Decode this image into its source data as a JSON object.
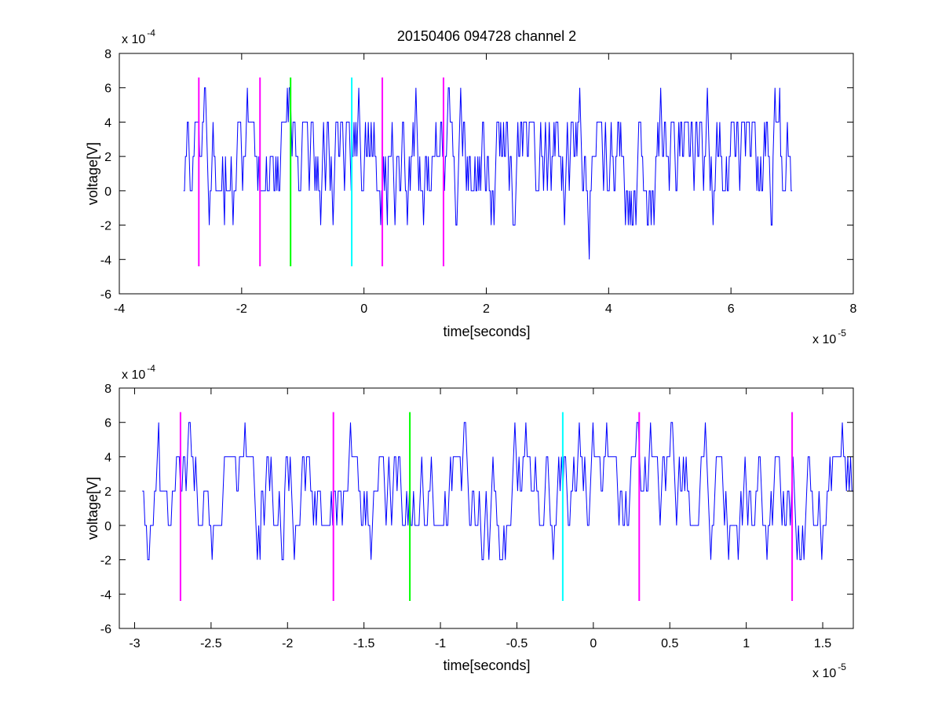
{
  "title": "20150406 094728 channel 2",
  "colors": {
    "signal": "#0000ff",
    "magenta": "#ff00ff",
    "green": "#00ff00",
    "cyan": "#00ffff",
    "axes": "#000000"
  },
  "chart_data": [
    {
      "type": "line",
      "title": "20150406 094728 channel 2",
      "xlabel": "time[seconds]",
      "ylabel": "voltage[V]",
      "x_exponent": {
        "base": "x 10",
        "power": "-5"
      },
      "y_exponent": {
        "base": "x 10",
        "power": "-4"
      },
      "xlim": [
        -4,
        8
      ],
      "ylim": [
        -6,
        8
      ],
      "xticks": [
        -4,
        -2,
        0,
        2,
        4,
        6,
        8
      ],
      "xtick_labels": [
        "-4",
        "-2",
        "0",
        "2",
        "4",
        "6",
        "8"
      ],
      "yticks": [
        -6,
        -4,
        -2,
        0,
        2,
        4,
        6,
        8
      ],
      "ytick_labels": [
        "-6",
        "-4",
        "-2",
        "0",
        "2",
        "4",
        "6",
        "8"
      ],
      "grid": false,
      "series_x_range": [
        -2.95,
        7.0
      ],
      "quantization_step": 2,
      "signal_levels": [
        -4,
        -2,
        0,
        2,
        4,
        6
      ],
      "markers": [
        {
          "x": -2.7,
          "color": "magenta",
          "y_range": [
            -4.4,
            6.6
          ]
        },
        {
          "x": -1.7,
          "color": "magenta",
          "y_range": [
            -4.4,
            6.6
          ]
        },
        {
          "x": -1.2,
          "color": "green",
          "y_range": [
            -4.4,
            6.6
          ]
        },
        {
          "x": -0.2,
          "color": "cyan",
          "y_range": [
            -4.4,
            6.6
          ]
        },
        {
          "x": 0.3,
          "color": "magenta",
          "y_range": [
            -4.4,
            6.6
          ]
        },
        {
          "x": 1.3,
          "color": "magenta",
          "y_range": [
            -4.4,
            6.6
          ]
        }
      ]
    },
    {
      "type": "line",
      "title": "",
      "xlabel": "time[seconds]",
      "ylabel": "voltage[V]",
      "x_exponent": {
        "base": "x 10",
        "power": "-5"
      },
      "y_exponent": {
        "base": "x 10",
        "power": "-4"
      },
      "xlim": [
        -3.1,
        1.7
      ],
      "ylim": [
        -6,
        8
      ],
      "xticks": [
        -3,
        -2.5,
        -2,
        -1.5,
        -1,
        -0.5,
        0,
        0.5,
        1,
        1.5
      ],
      "xtick_labels": [
        "-3",
        "-2.5",
        "-2",
        "-1.5",
        "-1",
        "-0.5",
        "0",
        "0.5",
        "1",
        "1.5"
      ],
      "yticks": [
        -6,
        -4,
        -2,
        0,
        2,
        4,
        6,
        8
      ],
      "ytick_labels": [
        "-6",
        "-4",
        "-2",
        "0",
        "2",
        "4",
        "6",
        "8"
      ],
      "grid": false,
      "series_x_range": [
        -2.95,
        1.7
      ],
      "quantization_step": 2,
      "signal_levels": [
        -2,
        0,
        2,
        4,
        6
      ],
      "markers": [
        {
          "x": -2.7,
          "color": "magenta",
          "y_range": [
            -4.4,
            6.6
          ]
        },
        {
          "x": -1.7,
          "color": "magenta",
          "y_range": [
            -4.4,
            6.6
          ]
        },
        {
          "x": -1.2,
          "color": "green",
          "y_range": [
            -4.4,
            6.6
          ]
        },
        {
          "x": -0.2,
          "color": "cyan",
          "y_range": [
            -4.4,
            6.6
          ]
        },
        {
          "x": 0.3,
          "color": "magenta",
          "y_range": [
            -4.4,
            6.6
          ]
        },
        {
          "x": 1.3,
          "color": "magenta",
          "y_range": [
            -4.4,
            6.6
          ]
        }
      ]
    }
  ]
}
